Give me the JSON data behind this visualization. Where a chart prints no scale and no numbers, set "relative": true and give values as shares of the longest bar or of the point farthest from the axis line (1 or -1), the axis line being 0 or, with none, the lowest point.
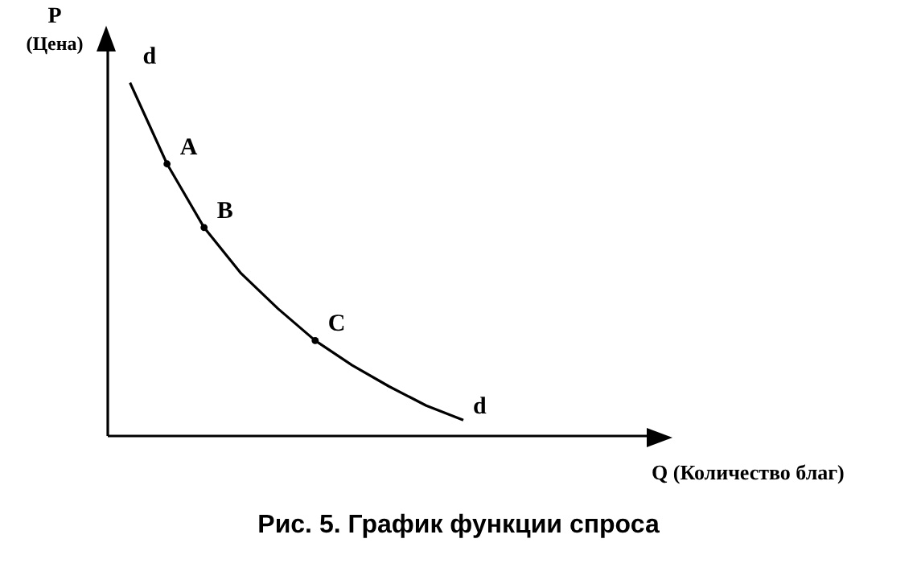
{
  "chart_data": {
    "type": "line",
    "relative": true,
    "title": "Рис. 5. График функции спроса",
    "annotations": [
      "Q (Количество благ)",
      "d",
      "A",
      "B",
      "C",
      "d"
    ],
    "ylabel": "P\n(Цена)",
    "categories": [
      null,
      null,
      null,
      null,
      null,
      null,
      null,
      null,
      null,
      null
    ],
    "tick_labels": false,
    "series": [
      {
        "color": "#000000",
        "values": [
          1,
          0.77,
          0.59,
          0.46,
          0.36,
          0.27,
          0.2,
          0.14,
          0.086,
          0.045
        ]
      }
    ]
  }
}
